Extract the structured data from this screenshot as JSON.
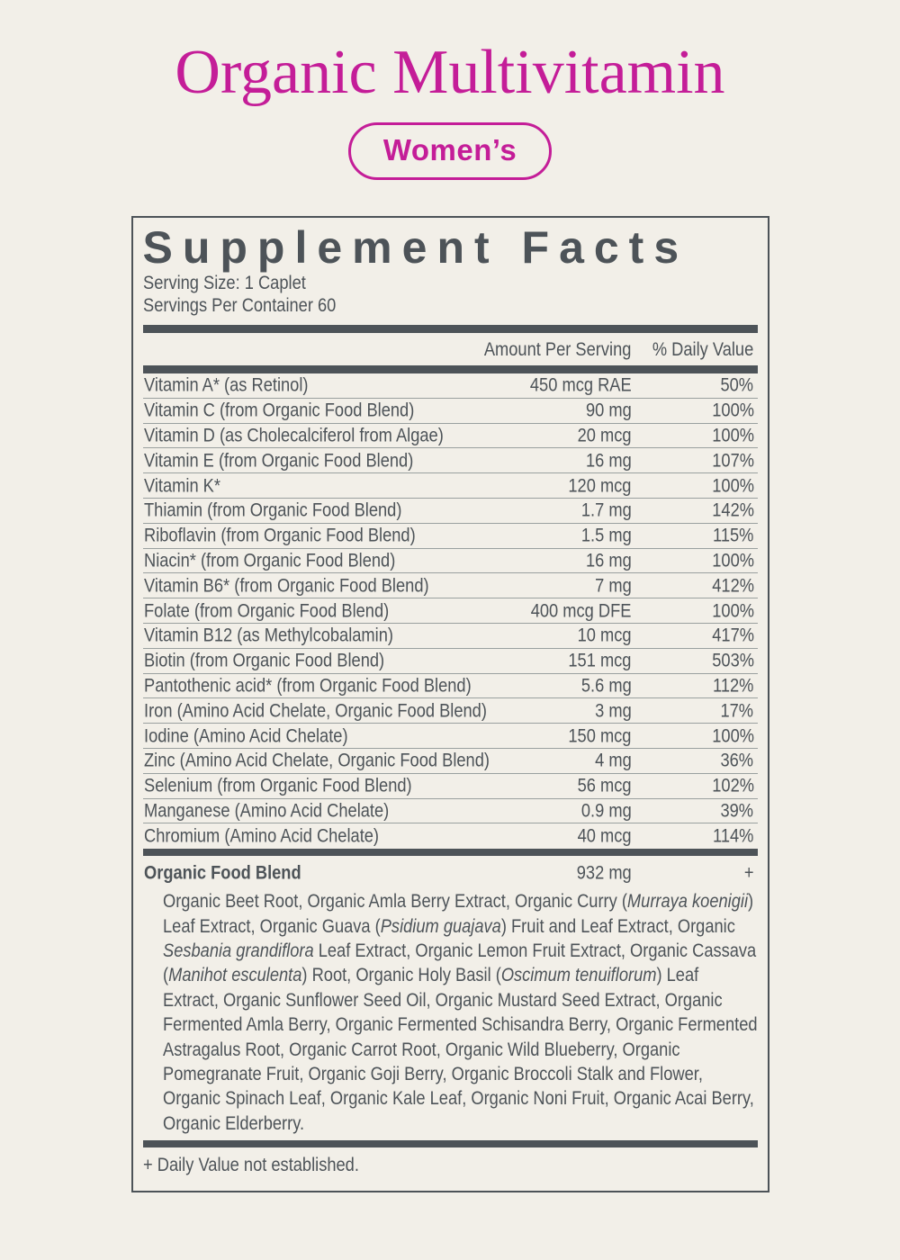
{
  "colors": {
    "background": "#f2efe8",
    "accent_magenta": "#c41d98",
    "ink": "#4d5358"
  },
  "header": {
    "title": "Organic Multivitamin",
    "badge": "Women’s"
  },
  "panel": {
    "title": "Supplement Facts",
    "serving_size": "Serving Size: 1 Caplet",
    "servings_per_container": "Servings Per Container 60",
    "columns": {
      "amount": "Amount Per Serving",
      "daily_value": "% Daily Value"
    },
    "nutrients": [
      {
        "name": "Vitamin A* (as Retinol)",
        "amount": "450 mcg RAE",
        "dv": "50%"
      },
      {
        "name": "Vitamin C (from Organic Food Blend)",
        "amount": "90 mg",
        "dv": "100%"
      },
      {
        "name": "Vitamin D (as Cholecalciferol from Algae)",
        "amount": "20 mcg",
        "dv": "100%"
      },
      {
        "name": "Vitamin E (from Organic Food Blend)",
        "amount": "16 mg",
        "dv": "107%"
      },
      {
        "name": "Vitamin K*",
        "amount": "120 mcg",
        "dv": "100%"
      },
      {
        "name": "Thiamin (from Organic Food Blend)",
        "amount": "1.7 mg",
        "dv": "142%"
      },
      {
        "name": "Riboflavin (from Organic Food Blend)",
        "amount": "1.5 mg",
        "dv": "115%"
      },
      {
        "name": "Niacin* (from Organic Food Blend)",
        "amount": "16 mg",
        "dv": "100%"
      },
      {
        "name": "Vitamin B6* (from Organic Food Blend)",
        "amount": "7 mg",
        "dv": "412%"
      },
      {
        "name": "Folate (from Organic Food Blend)",
        "amount": "400 mcg DFE",
        "dv": "100%"
      },
      {
        "name": "Vitamin B12 (as Methylcobalamin)",
        "amount": "10 mcg",
        "dv": "417%"
      },
      {
        "name": "Biotin (from Organic Food Blend)",
        "amount": "151 mcg",
        "dv": "503%"
      },
      {
        "name": "Pantothenic acid* (from Organic Food Blend)",
        "amount": "5.6 mg",
        "dv": "112%"
      },
      {
        "name": "Iron (Amino Acid Chelate, Organic Food Blend)",
        "amount": "3 mg",
        "dv": "17%"
      },
      {
        "name": "Iodine (Amino Acid Chelate)",
        "amount": "150 mcg",
        "dv": "100%"
      },
      {
        "name": "Zinc (Amino Acid Chelate, Organic Food Blend)",
        "amount": "4 mg",
        "dv": "36%"
      },
      {
        "name": "Selenium (from Organic Food Blend)",
        "amount": "56 mcg",
        "dv": "102%"
      },
      {
        "name": "Manganese (Amino Acid Chelate)",
        "amount": "0.9 mg",
        "dv": "39%"
      },
      {
        "name": "Chromium (Amino Acid Chelate)",
        "amount": "40 mcg",
        "dv": "114%"
      }
    ],
    "blend": {
      "name": "Organic Food Blend",
      "amount": "932 mg",
      "dv": "+",
      "ingredients": [
        {
          "text": "Organic Beet Root, Organic Amla Berry Extract, Organic Curry (",
          "italic": false
        },
        {
          "text": "Murraya koenigii",
          "italic": true
        },
        {
          "text": ") Leaf Extract, Organic Guava (",
          "italic": false
        },
        {
          "text": "Psidium guajava",
          "italic": true
        },
        {
          "text": ") Fruit and Leaf Extract, Organic ",
          "italic": false
        },
        {
          "text": "Sesbania grandiflora",
          "italic": true
        },
        {
          "text": " Leaf Extract, Organic Lemon Fruit Extract, Organic Cassava (",
          "italic": false
        },
        {
          "text": "Manihot esculenta",
          "italic": true
        },
        {
          "text": ") Root, Organic Holy Basil (",
          "italic": false
        },
        {
          "text": "Oscimum tenuiflorum",
          "italic": true
        },
        {
          "text": ") Leaf Extract, Organic Sunflower Seed Oil, Organic Mustard Seed Extract, Organic Fermented Amla Berry, Organic Fermented Schisandra Berry, Organic Fermented Astragalus Root, Organic Carrot Root, Organic Wild Blueberry, Organic Pomegranate Fruit, Organic Goji Berry, Organic Broccoli Stalk and Flower, Organic Spinach Leaf, Organic Kale Leaf, Organic Noni Fruit, Organic Acai Berry, Organic Elderberry.",
          "italic": false
        }
      ]
    },
    "footnote": "+ Daily Value not established."
  }
}
